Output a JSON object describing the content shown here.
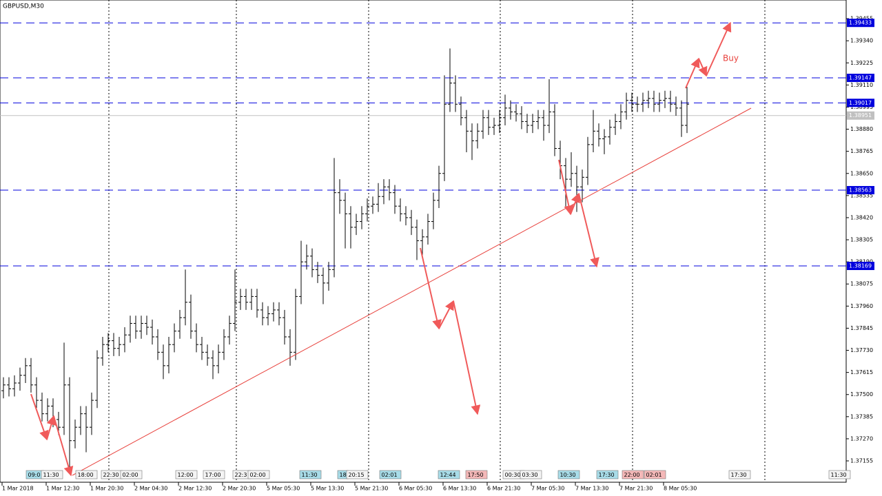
{
  "chart_data": {
    "type": "ohlc",
    "title": "GBPUSD,M30",
    "annotation": "Buy",
    "bar_color": "#000000",
    "level_color": "#0000dd",
    "bid_color": "#c0c0c0",
    "trend_color": "#e8413c",
    "categories": [
      "1 Mar 2018",
      null,
      null,
      null,
      null,
      null,
      null,
      null,
      "1 Mar 12:30",
      null,
      null,
      null,
      null,
      null,
      null,
      null,
      "1 Mar 20:30",
      null,
      null,
      null,
      null,
      null,
      null,
      null,
      "2 Mar 04:30",
      null,
      null,
      null,
      null,
      null,
      null,
      null,
      "2 Mar 12:30",
      null,
      null,
      null,
      null,
      null,
      null,
      null,
      "2 Mar 20:30",
      null,
      null,
      null,
      null,
      null,
      null,
      null,
      "5 Mar 05:30",
      null,
      null,
      null,
      null,
      null,
      null,
      null,
      "5 Mar 13:30",
      null,
      null,
      null,
      null,
      null,
      null,
      null,
      "5 Mar 21:30",
      null,
      null,
      null,
      null,
      null,
      null,
      null,
      "6 Mar 05:30",
      null,
      null,
      null,
      null,
      null,
      null,
      null,
      "6 Mar 13:30",
      null,
      null,
      null,
      null,
      null,
      null,
      null,
      "6 Mar 21:30",
      null,
      null,
      null,
      null,
      null,
      null,
      null,
      "7 Mar 05:30",
      null,
      null,
      null,
      null,
      null,
      null,
      null,
      "7 Mar 13:30",
      null,
      null,
      null,
      null,
      null,
      null,
      null,
      "7 Mar 21:30",
      null,
      null,
      null,
      null,
      null,
      null,
      null,
      "8 Mar 05:30",
      null,
      null,
      null,
      null
    ],
    "open": [
      1.3752,
      1.3755,
      1.3753,
      1.3756,
      1.376,
      1.3765,
      1.3755,
      1.3747,
      1.374,
      1.3744,
      1.3737,
      1.3733,
      1.3755,
      1.3726,
      1.3733,
      1.374,
      1.3733,
      1.3747,
      1.3769,
      1.3776,
      1.3778,
      1.3774,
      1.3776,
      1.3781,
      1.3787,
      1.3783,
      1.3787,
      1.3785,
      1.378,
      1.3772,
      1.3765,
      1.3776,
      1.3783,
      1.379,
      1.3798,
      1.3783,
      1.3776,
      1.3772,
      1.3769,
      1.3765,
      1.3772,
      1.378,
      1.3787,
      1.3798,
      1.3801,
      1.3798,
      1.3801,
      1.3794,
      1.379,
      1.3792,
      1.3794,
      1.379,
      1.378,
      1.3772,
      1.3801,
      1.3819,
      1.3822,
      1.3815,
      1.3812,
      1.3808,
      1.3815,
      1.3855,
      1.3851,
      1.3844,
      1.3837,
      1.384,
      1.3844,
      1.3848,
      1.3849,
      1.3853,
      1.3858,
      1.3855,
      1.3848,
      1.3844,
      1.3842,
      1.3837,
      1.383,
      1.3832,
      1.384,
      1.3851,
      1.3865,
      1.3901,
      1.3912,
      1.3901,
      1.3894,
      1.3887,
      1.3882,
      1.3887,
      1.3894,
      1.3889,
      1.389,
      1.3894,
      1.3899,
      1.3897,
      1.3896,
      1.3892,
      1.389,
      1.3892,
      1.3894,
      1.389,
      1.3897,
      1.3878,
      1.3869,
      1.3862,
      1.3865,
      1.3858,
      1.3863,
      1.388,
      1.3887,
      1.3883,
      1.3884,
      1.3889,
      1.3892,
      1.3897,
      1.3903,
      1.3901,
      1.3901,
      1.3903,
      1.3904,
      1.3901,
      1.3903,
      1.3904,
      1.3901,
      1.3899,
      1.389
    ],
    "high": [
      1.3759,
      1.3759,
      1.376,
      1.3764,
      1.3769,
      1.3769,
      1.3759,
      1.3751,
      1.3748,
      1.3748,
      1.3741,
      1.3777,
      1.3759,
      1.3737,
      1.3744,
      1.3744,
      1.3751,
      1.3773,
      1.378,
      1.3782,
      1.3782,
      1.378,
      1.3785,
      1.3791,
      1.3791,
      1.3791,
      1.3791,
      1.3789,
      1.3784,
      1.3776,
      1.378,
      1.3787,
      1.3794,
      1.3815,
      1.3802,
      1.3787,
      1.378,
      1.3776,
      1.3773,
      1.3776,
      1.3784,
      1.3791,
      1.3815,
      1.3805,
      1.3805,
      1.3805,
      1.3805,
      1.3798,
      1.3796,
      1.3798,
      1.3798,
      1.3794,
      1.3784,
      1.3805,
      1.383,
      1.3828,
      1.3826,
      1.3819,
      1.3816,
      1.3819,
      1.3873,
      1.3862,
      1.3855,
      1.3848,
      1.3844,
      1.3848,
      1.3852,
      1.3853,
      1.386,
      1.3862,
      1.3862,
      1.3859,
      1.3852,
      1.3848,
      1.3846,
      1.3841,
      1.3836,
      1.3844,
      1.3855,
      1.3869,
      1.3916,
      1.393,
      1.3916,
      1.3905,
      1.3898,
      1.3891,
      1.3891,
      1.3898,
      1.3898,
      1.3894,
      1.3898,
      1.3906,
      1.3903,
      1.3901,
      1.39,
      1.3896,
      1.3896,
      1.3898,
      1.3898,
      1.3914,
      1.3901,
      1.3882,
      1.3873,
      1.3876,
      1.3869,
      1.3867,
      1.3884,
      1.3898,
      1.3891,
      1.3888,
      1.3893,
      1.3896,
      1.3901,
      1.3907,
      1.3907,
      1.3905,
      1.3907,
      1.3908,
      1.3908,
      1.3907,
      1.3908,
      1.3908,
      1.3905,
      1.3903,
      1.391
    ],
    "low": [
      1.3748,
      1.3749,
      1.3749,
      1.3752,
      1.3756,
      1.3751,
      1.3743,
      1.3736,
      1.3736,
      1.3733,
      1.3729,
      1.3729,
      1.3712,
      1.3722,
      1.3729,
      1.372,
      1.3729,
      1.3743,
      1.3765,
      1.3772,
      1.377,
      1.377,
      1.3772,
      1.3777,
      1.3779,
      1.3779,
      1.3781,
      1.3776,
      1.3768,
      1.3758,
      1.3761,
      1.3772,
      1.3779,
      1.3786,
      1.3779,
      1.3772,
      1.3768,
      1.3765,
      1.3758,
      1.3761,
      1.3768,
      1.3776,
      1.3783,
      1.3794,
      1.3794,
      1.3794,
      1.379,
      1.3786,
      1.3786,
      1.3788,
      1.3786,
      1.3776,
      1.3765,
      1.3768,
      1.3797,
      1.3815,
      1.3811,
      1.3808,
      1.3797,
      1.3804,
      1.3811,
      1.3844,
      1.3826,
      1.3826,
      1.3833,
      1.3836,
      1.384,
      1.3844,
      1.3845,
      1.3849,
      1.3851,
      1.3844,
      1.384,
      1.3838,
      1.3833,
      1.382,
      1.3822,
      1.3828,
      1.3836,
      1.3847,
      1.3861,
      1.3897,
      1.3897,
      1.389,
      1.3876,
      1.3872,
      1.3878,
      1.3883,
      1.3885,
      1.3885,
      1.3886,
      1.389,
      1.3893,
      1.3892,
      1.3888,
      1.3886,
      1.3886,
      1.3888,
      1.3882,
      1.3886,
      1.3874,
      1.3862,
      1.3847,
      1.3858,
      1.3845,
      1.385,
      1.3859,
      1.3876,
      1.3879,
      1.3875,
      1.388,
      1.3885,
      1.3888,
      1.3893,
      1.3897,
      1.3897,
      1.3897,
      1.3899,
      1.3897,
      1.3897,
      1.3899,
      1.3897,
      1.3895,
      1.3884,
      1.3886
    ],
    "close": [
      1.3755,
      1.3753,
      1.3756,
      1.376,
      1.3765,
      1.3755,
      1.3747,
      1.374,
      1.3744,
      1.3737,
      1.3733,
      1.3755,
      1.3726,
      1.3733,
      1.374,
      1.3733,
      1.3747,
      1.3769,
      1.3776,
      1.3778,
      1.3774,
      1.3776,
      1.3781,
      1.3787,
      1.3783,
      1.3787,
      1.3785,
      1.378,
      1.3772,
      1.3765,
      1.3776,
      1.3783,
      1.379,
      1.3798,
      1.3783,
      1.3776,
      1.3772,
      1.3769,
      1.3765,
      1.3772,
      1.378,
      1.3787,
      1.3798,
      1.3801,
      1.3798,
      1.3801,
      1.3794,
      1.379,
      1.3792,
      1.3794,
      1.379,
      1.378,
      1.3772,
      1.3801,
      1.3819,
      1.3822,
      1.3815,
      1.3812,
      1.3808,
      1.3815,
      1.3855,
      1.3851,
      1.3844,
      1.3837,
      1.384,
      1.3844,
      1.3848,
      1.3849,
      1.3853,
      1.3858,
      1.3855,
      1.3848,
      1.3844,
      1.3842,
      1.3837,
      1.383,
      1.3832,
      1.384,
      1.3851,
      1.3865,
      1.3901,
      1.3912,
      1.3901,
      1.3894,
      1.3887,
      1.3882,
      1.3887,
      1.3894,
      1.3889,
      1.389,
      1.3894,
      1.3899,
      1.3897,
      1.3896,
      1.3892,
      1.389,
      1.3892,
      1.3894,
      1.389,
      1.3897,
      1.3878,
      1.3869,
      1.3862,
      1.3865,
      1.3858,
      1.3863,
      1.388,
      1.3887,
      1.3883,
      1.3884,
      1.3889,
      1.3892,
      1.3897,
      1.3903,
      1.3901,
      1.3901,
      1.3903,
      1.3904,
      1.3901,
      1.3903,
      1.3904,
      1.3901,
      1.3899,
      1.389,
      1.3901
    ],
    "ylim": [
      1.37044,
      1.39552
    ],
    "yticks": [
      1.37155,
      {
        "value": 1.3727,
        "label": "1.37270"
      },
      1.37385,
      {
        "value": 1.375,
        "label": "1.37500"
      },
      1.37615,
      {
        "value": 1.3773,
        "label": "1.37730"
      },
      1.37845,
      {
        "value": 1.3796,
        "label": "1.37960"
      },
      1.38075,
      {
        "value": 1.3819,
        "label": "1.38190"
      },
      1.38305,
      {
        "value": 1.3842,
        "label": "1.38420"
      },
      1.38535,
      {
        "value": 1.3865,
        "label": "1.38650"
      },
      1.38765,
      {
        "value": 1.3888,
        "label": "1.38880"
      },
      1.38995,
      {
        "value": 1.3911,
        "label": "1.39110"
      },
      1.39225,
      {
        "value": 1.3934,
        "label": "1.39340"
      },
      1.39455
    ],
    "levels": [
      1.39433,
      1.39147,
      1.39017,
      1.38563,
      1.38169
    ],
    "bid": 1.38951,
    "events": [
      {
        "text": "09:0",
        "color": "#a8dce8"
      },
      {
        "text": "11:30",
        "color": "#f4f4f4"
      },
      {
        "text": "18:00",
        "color": "#f4f4f4"
      },
      {
        "text": "22:30",
        "color": "#f4f4f4"
      },
      {
        "text": "02:00",
        "color": "#f4f4f4"
      },
      {
        "text": "12:00",
        "color": "#f4f4f4"
      },
      {
        "text": "17:00",
        "color": "#f4f4f4"
      },
      {
        "text": "22:3",
        "color": "#f4f4f4"
      },
      {
        "text": "02:00",
        "color": "#f4f4f4"
      },
      {
        "text": "11:30",
        "color": "#a8dce8"
      },
      {
        "text": "18",
        "color": "#a8dce8"
      },
      {
        "text": "20:15",
        "color": "#f4f4f4"
      },
      {
        "text": "02:01",
        "color": "#a8dce8"
      },
      {
        "text": "12:44",
        "color": "#a8dce8"
      },
      {
        "text": "17:50",
        "color": "#f4b8b8"
      },
      {
        "text": "00:30",
        "color": "#f4f4f4"
      },
      {
        "text": "03:30",
        "color": "#f4f4f4"
      },
      {
        "text": "10:30",
        "color": "#a8dce8"
      },
      {
        "text": "17:30",
        "color": "#a8dce8"
      },
      {
        "text": "22:00",
        "color": "#f4b8b8"
      },
      {
        "text": "02:01",
        "color": "#f4b8b8"
      },
      {
        "text": "17:30",
        "color": "#f4f4f4"
      },
      {
        "text": "11:30",
        "color": "#f4f4f4"
      }
    ]
  }
}
